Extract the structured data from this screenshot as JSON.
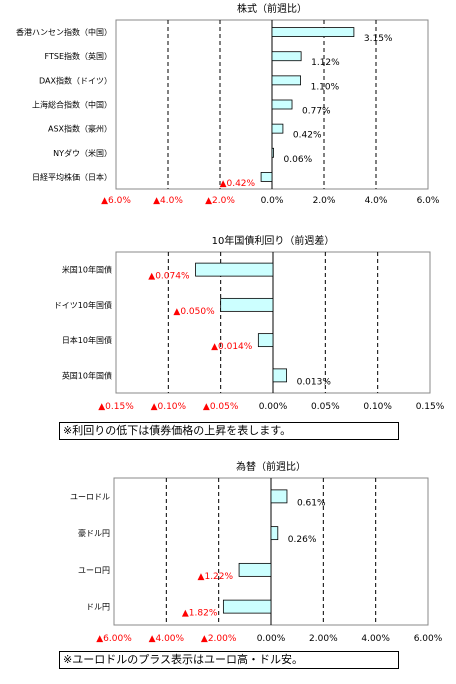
{
  "chart_data": [
    {
      "type": "bar",
      "orientation": "horizontal",
      "title": "株式（前週比）",
      "categories": [
        "香港ハンセン指数（中国）",
        "FTSE指数（英国）",
        "DAX指数（ドイツ）",
        "上海総合指数（中国）",
        "ASX指数（豪州）",
        "NYダウ（米国）",
        "日経平均株価（日本）"
      ],
      "values": [
        3.15,
        1.12,
        1.1,
        0.77,
        0.42,
        0.06,
        -0.42
      ],
      "value_labels": [
        "3.15%",
        "1.12%",
        "1.10%",
        "0.77%",
        "0.42%",
        "0.06%",
        "▲0.42%"
      ],
      "xlim": [
        -6,
        6
      ],
      "x_ticks": [
        -6,
        -4,
        -2,
        0,
        2,
        4,
        6
      ],
      "x_tick_labels": [
        "▲6.0%",
        "▲4.0%",
        "▲2.0%",
        "0.0%",
        "2.0%",
        "4.0%",
        "6.0%"
      ],
      "grid": "vertical dashed",
      "bar_color": "#ccffff",
      "negative_label_color": "#ff0000"
    },
    {
      "type": "bar",
      "orientation": "horizontal",
      "title": "10年国債利回り（前週差）",
      "categories": [
        "米国10年国債",
        "ドイツ10年国債",
        "日本10年国債",
        "英国10年国債"
      ],
      "values": [
        -0.074,
        -0.05,
        -0.014,
        0.013
      ],
      "value_labels": [
        "▲0.074%",
        "▲0.050%",
        "▲0.014%",
        "0.013%"
      ],
      "xlim": [
        -0.15,
        0.15
      ],
      "x_ticks": [
        -0.15,
        -0.1,
        -0.05,
        0,
        0.05,
        0.1,
        0.15
      ],
      "x_tick_labels": [
        "▲0.15%",
        "▲0.10%",
        "▲0.05%",
        "0.00%",
        "0.05%",
        "0.10%",
        "0.15%"
      ],
      "grid": "vertical dashed",
      "bar_color": "#ccffff",
      "negative_label_color": "#ff0000"
    },
    {
      "type": "bar",
      "orientation": "horizontal",
      "title": "為替（前週比）",
      "categories": [
        "ユーロドル",
        "豪ドル円",
        "ユーロ円",
        "ドル円"
      ],
      "values": [
        0.61,
        0.26,
        -1.22,
        -1.82
      ],
      "value_labels": [
        "0.61%",
        "0.26%",
        "▲1.22%",
        "▲1.82%"
      ],
      "xlim": [
        -6,
        6
      ],
      "x_ticks": [
        -6,
        -4,
        -2,
        0,
        2,
        4,
        6
      ],
      "x_tick_labels": [
        "▲6.00%",
        "▲4.00%",
        "▲2.00%",
        "0.00%",
        "2.00%",
        "4.00%",
        "6.00%"
      ],
      "grid": "vertical dashed",
      "bar_color": "#ccffff",
      "negative_label_color": "#ff0000"
    }
  ],
  "notes": {
    "bonds": "※利回りの低下は債券価格の上昇を表します。",
    "fx": "※ユーロドルのプラス表示はユーロ高・ドル安。"
  }
}
